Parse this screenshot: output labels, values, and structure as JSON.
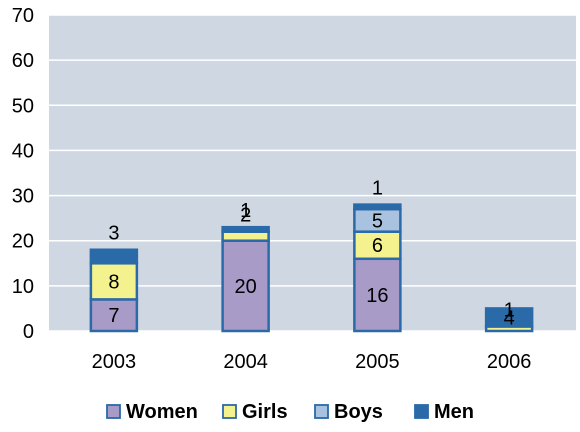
{
  "chart_data": {
    "type": "bar",
    "stacked": true,
    "categories": [
      "2003",
      "2004",
      "2005",
      "2006"
    ],
    "series": [
      {
        "name": "Women",
        "color": "#a99bc8",
        "values": [
          7,
          20,
          16,
          0
        ]
      },
      {
        "name": "Girls",
        "color": "#f4f28e",
        "values": [
          8,
          2,
          6,
          1
        ]
      },
      {
        "name": "Boys",
        "color": "#a9c2df",
        "values": [
          0,
          0,
          5,
          0
        ]
      },
      {
        "name": "Men",
        "color": "#2a6aa8",
        "values": [
          3,
          1,
          1,
          4
        ]
      }
    ],
    "data_labels": [
      {
        "category": "2003",
        "series": "Women",
        "text": "7"
      },
      {
        "category": "2003",
        "series": "Girls",
        "text": "8"
      },
      {
        "category": "2003",
        "series": "Men",
        "text": "3"
      },
      {
        "category": "2004",
        "series": "Women",
        "text": "20"
      },
      {
        "category": "2004",
        "series": "Girls",
        "text": "2"
      },
      {
        "category": "2004",
        "series": "Men",
        "text": "1"
      },
      {
        "category": "2005",
        "series": "Women",
        "text": "16"
      },
      {
        "category": "2005",
        "series": "Girls",
        "text": "6"
      },
      {
        "category": "2005",
        "series": "Boys",
        "text": "5"
      },
      {
        "category": "2005",
        "series": "Men",
        "text": "1"
      },
      {
        "category": "2006",
        "series": "Girls",
        "text": "1"
      },
      {
        "category": "2006",
        "series": "Men",
        "text": "4"
      }
    ],
    "ylim": [
      0,
      70
    ],
    "yticks": [
      0,
      10,
      20,
      30,
      40,
      50,
      60,
      70
    ],
    "grid": true,
    "legend_position": "bottom",
    "colors": {
      "plot_background": "#cfd8e2",
      "gridline": "#ffffff",
      "bar_outline": "#2a6aa8"
    }
  }
}
